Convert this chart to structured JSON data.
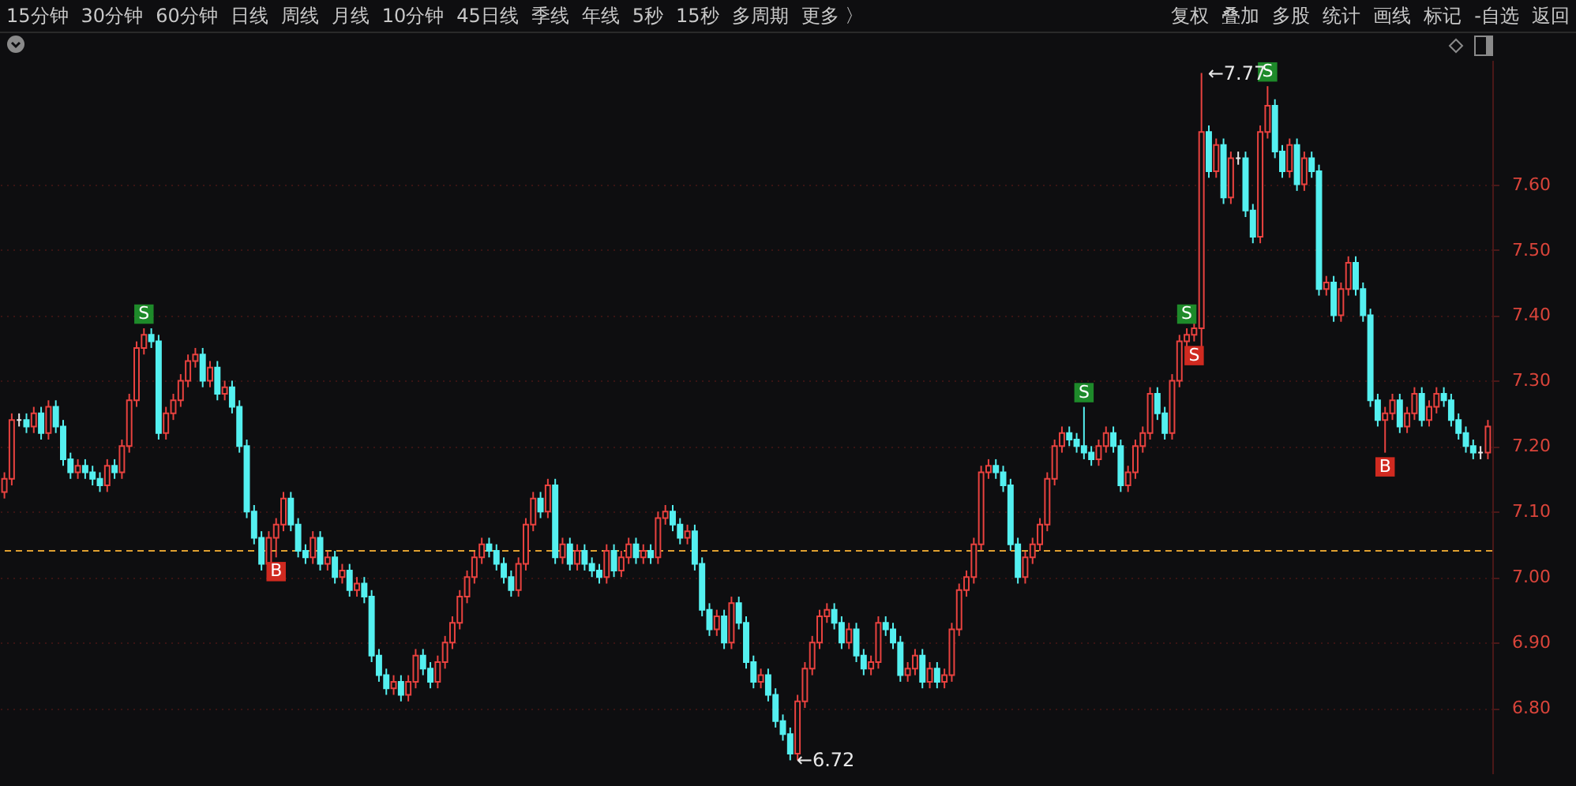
{
  "chart_data": {
    "type": "candlestick",
    "categories": [
      null,
      null,
      null,
      null,
      null,
      null,
      null,
      null,
      null,
      null,
      null,
      null,
      null,
      null,
      null,
      null,
      null,
      null,
      null,
      null,
      null,
      null,
      null,
      null,
      null,
      null,
      null,
      null,
      null,
      null,
      null,
      null,
      null,
      null,
      null,
      null,
      null,
      null,
      null,
      null,
      null,
      null,
      null,
      null,
      null,
      null,
      null,
      null,
      null,
      null,
      null,
      null,
      null,
      null,
      null,
      null,
      null,
      null,
      null,
      null,
      null,
      null,
      null,
      null,
      null,
      null,
      null,
      null,
      null,
      null,
      null,
      null,
      null,
      null,
      null,
      null,
      null,
      null,
      null,
      null,
      null,
      null,
      null,
      null,
      null,
      null,
      null,
      null,
      null,
      null,
      null,
      null,
      null,
      null,
      null,
      null,
      null,
      null,
      null,
      null,
      null,
      null,
      null,
      null,
      null,
      null,
      null,
      null,
      null,
      null,
      null,
      null,
      null,
      null,
      null,
      null,
      null,
      null,
      null,
      null,
      null,
      null,
      null,
      null,
      null,
      null,
      null,
      null,
      null,
      null,
      null,
      null,
      null,
      null,
      null,
      null,
      null,
      null,
      null,
      null,
      null,
      null,
      null,
      null,
      null,
      null,
      null,
      null,
      null,
      null,
      null,
      null,
      null,
      null,
      null,
      null,
      null,
      null,
      null,
      null,
      null,
      null,
      null,
      null,
      null,
      null,
      null,
      null,
      null,
      null,
      null,
      null,
      null,
      null,
      null,
      null,
      null,
      null,
      null,
      null,
      null,
      null,
      null,
      null,
      null,
      null,
      null,
      null,
      null,
      null,
      null,
      null,
      null,
      null,
      null,
      null,
      null,
      null,
      null,
      null,
      null,
      null,
      null
    ],
    "ohlc": [
      [
        7.13,
        7.16,
        7.12,
        7.15
      ],
      [
        7.15,
        7.25,
        7.14,
        7.24
      ],
      [
        7.24,
        7.25,
        7.23,
        7.24
      ],
      [
        7.24,
        7.25,
        7.22,
        7.23
      ],
      [
        7.23,
        7.26,
        7.22,
        7.25
      ],
      [
        7.25,
        7.26,
        7.21,
        7.22
      ],
      [
        7.22,
        7.27,
        7.21,
        7.26
      ],
      [
        7.26,
        7.27,
        7.22,
        7.23
      ],
      [
        7.23,
        7.24,
        7.17,
        7.18
      ],
      [
        7.18,
        7.19,
        7.15,
        7.16
      ],
      [
        7.16,
        7.18,
        7.15,
        7.17
      ],
      [
        7.17,
        7.18,
        7.15,
        7.16
      ],
      [
        7.16,
        7.17,
        7.14,
        7.15
      ],
      [
        7.15,
        7.16,
        7.13,
        7.14
      ],
      [
        7.14,
        7.18,
        7.13,
        7.17
      ],
      [
        7.17,
        7.18,
        7.15,
        7.16
      ],
      [
        7.16,
        7.21,
        7.15,
        7.2
      ],
      [
        7.2,
        7.28,
        7.19,
        7.27
      ],
      [
        7.27,
        7.36,
        7.26,
        7.35
      ],
      [
        7.35,
        7.38,
        7.34,
        7.37
      ],
      [
        7.37,
        7.38,
        7.35,
        7.36
      ],
      [
        7.36,
        7.37,
        7.21,
        7.22
      ],
      [
        7.22,
        7.26,
        7.21,
        7.25
      ],
      [
        7.25,
        7.28,
        7.24,
        7.27
      ],
      [
        7.27,
        7.31,
        7.26,
        7.3
      ],
      [
        7.3,
        7.34,
        7.29,
        7.33
      ],
      [
        7.33,
        7.35,
        7.32,
        7.34
      ],
      [
        7.34,
        7.35,
        7.29,
        7.3
      ],
      [
        7.3,
        7.33,
        7.29,
        7.32
      ],
      [
        7.32,
        7.33,
        7.27,
        7.28
      ],
      [
        7.28,
        7.3,
        7.27,
        7.29
      ],
      [
        7.29,
        7.3,
        7.25,
        7.26
      ],
      [
        7.26,
        7.27,
        7.19,
        7.2
      ],
      [
        7.2,
        7.21,
        7.09,
        7.1
      ],
      [
        7.1,
        7.11,
        7.05,
        7.06
      ],
      [
        7.06,
        7.07,
        7.01,
        7.02
      ],
      [
        7.02,
        7.07,
        7.01,
        7.06
      ],
      [
        7.06,
        7.09,
        7.03,
        7.08
      ],
      [
        7.08,
        7.13,
        7.07,
        7.12
      ],
      [
        7.12,
        7.13,
        7.07,
        7.08
      ],
      [
        7.08,
        7.09,
        7.03,
        7.04
      ],
      [
        7.04,
        7.05,
        7.02,
        7.03
      ],
      [
        7.03,
        7.07,
        7.02,
        7.06
      ],
      [
        7.06,
        7.07,
        7.01,
        7.02
      ],
      [
        7.02,
        7.04,
        7.01,
        7.03
      ],
      [
        7.03,
        7.04,
        6.99,
        7.0
      ],
      [
        7.0,
        7.02,
        6.99,
        7.01
      ],
      [
        7.01,
        7.02,
        6.97,
        6.98
      ],
      [
        6.98,
        7.0,
        6.97,
        6.99
      ],
      [
        6.99,
        7.0,
        6.96,
        6.97
      ],
      [
        6.97,
        6.98,
        6.87,
        6.88
      ],
      [
        6.88,
        6.89,
        6.84,
        6.85
      ],
      [
        6.85,
        6.86,
        6.82,
        6.83
      ],
      [
        6.83,
        6.85,
        6.82,
        6.84
      ],
      [
        6.84,
        6.85,
        6.81,
        6.82
      ],
      [
        6.82,
        6.85,
        6.81,
        6.84
      ],
      [
        6.84,
        6.89,
        6.83,
        6.88
      ],
      [
        6.88,
        6.89,
        6.85,
        6.86
      ],
      [
        6.86,
        6.87,
        6.83,
        6.84
      ],
      [
        6.84,
        6.88,
        6.83,
        6.87
      ],
      [
        6.87,
        6.91,
        6.86,
        6.9
      ],
      [
        6.9,
        6.94,
        6.89,
        6.93
      ],
      [
        6.93,
        6.98,
        6.92,
        6.97
      ],
      [
        6.97,
        7.01,
        6.96,
        7.0
      ],
      [
        7.0,
        7.04,
        6.99,
        7.03
      ],
      [
        7.03,
        7.06,
        7.02,
        7.05
      ],
      [
        7.05,
        7.06,
        7.03,
        7.04
      ],
      [
        7.04,
        7.05,
        7.01,
        7.02
      ],
      [
        7.02,
        7.03,
        6.99,
        7.0
      ],
      [
        7.0,
        7.01,
        6.97,
        6.98
      ],
      [
        6.98,
        7.03,
        6.97,
        7.02
      ],
      [
        7.02,
        7.09,
        7.01,
        7.08
      ],
      [
        7.08,
        7.13,
        7.07,
        7.12
      ],
      [
        7.12,
        7.13,
        7.09,
        7.1
      ],
      [
        7.1,
        7.15,
        7.09,
        7.14
      ],
      [
        7.14,
        7.15,
        7.02,
        7.03
      ],
      [
        7.03,
        7.06,
        7.02,
        7.05
      ],
      [
        7.05,
        7.06,
        7.01,
        7.02
      ],
      [
        7.02,
        7.05,
        7.01,
        7.04
      ],
      [
        7.04,
        7.05,
        7.01,
        7.02
      ],
      [
        7.02,
        7.03,
        7.0,
        7.01
      ],
      [
        7.01,
        7.02,
        6.99,
        7.0
      ],
      [
        7.0,
        7.05,
        6.99,
        7.04
      ],
      [
        7.04,
        7.05,
        7.0,
        7.01
      ],
      [
        7.01,
        7.04,
        7.0,
        7.03
      ],
      [
        7.03,
        7.06,
        7.02,
        7.05
      ],
      [
        7.05,
        7.06,
        7.02,
        7.03
      ],
      [
        7.03,
        7.05,
        7.02,
        7.04
      ],
      [
        7.04,
        7.05,
        7.02,
        7.03
      ],
      [
        7.03,
        7.1,
        7.02,
        7.09
      ],
      [
        7.09,
        7.11,
        7.08,
        7.1
      ],
      [
        7.1,
        7.11,
        7.07,
        7.08
      ],
      [
        7.08,
        7.09,
        7.05,
        7.06
      ],
      [
        7.06,
        7.08,
        7.05,
        7.07
      ],
      [
        7.07,
        7.08,
        7.01,
        7.02
      ],
      [
        7.02,
        7.03,
        6.94,
        6.95
      ],
      [
        6.95,
        6.96,
        6.91,
        6.92
      ],
      [
        6.92,
        6.95,
        6.91,
        6.94
      ],
      [
        6.94,
        6.95,
        6.89,
        6.9
      ],
      [
        6.9,
        6.97,
        6.89,
        6.96
      ],
      [
        6.96,
        6.97,
        6.92,
        6.93
      ],
      [
        6.93,
        6.94,
        6.86,
        6.87
      ],
      [
        6.87,
        6.88,
        6.83,
        6.84
      ],
      [
        6.84,
        6.86,
        6.83,
        6.85
      ],
      [
        6.85,
        6.86,
        6.81,
        6.82
      ],
      [
        6.82,
        6.83,
        6.77,
        6.78
      ],
      [
        6.78,
        6.79,
        6.75,
        6.76
      ],
      [
        6.76,
        6.77,
        6.72,
        6.73
      ],
      [
        6.73,
        6.82,
        6.72,
        6.81
      ],
      [
        6.81,
        6.87,
        6.8,
        6.86
      ],
      [
        6.86,
        6.91,
        6.85,
        6.9
      ],
      [
        6.9,
        6.95,
        6.89,
        6.94
      ],
      [
        6.94,
        6.96,
        6.93,
        6.95
      ],
      [
        6.95,
        6.96,
        6.92,
        6.93
      ],
      [
        6.93,
        6.94,
        6.89,
        6.9
      ],
      [
        6.9,
        6.93,
        6.89,
        6.92
      ],
      [
        6.92,
        6.93,
        6.87,
        6.88
      ],
      [
        6.88,
        6.89,
        6.85,
        6.86
      ],
      [
        6.86,
        6.88,
        6.85,
        6.87
      ],
      [
        6.87,
        6.94,
        6.86,
        6.93
      ],
      [
        6.93,
        6.94,
        6.91,
        6.92
      ],
      [
        6.92,
        6.93,
        6.89,
        6.9
      ],
      [
        6.9,
        6.91,
        6.84,
        6.85
      ],
      [
        6.85,
        6.87,
        6.84,
        6.86
      ],
      [
        6.86,
        6.89,
        6.85,
        6.88
      ],
      [
        6.88,
        6.89,
        6.83,
        6.84
      ],
      [
        6.84,
        6.87,
        6.83,
        6.86
      ],
      [
        6.86,
        6.87,
        6.83,
        6.84
      ],
      [
        6.84,
        6.86,
        6.83,
        6.85
      ],
      [
        6.85,
        6.93,
        6.84,
        6.92
      ],
      [
        6.92,
        6.99,
        6.91,
        6.98
      ],
      [
        6.98,
        7.01,
        6.97,
        7.0
      ],
      [
        7.0,
        7.06,
        6.99,
        7.05
      ],
      [
        7.05,
        7.17,
        7.04,
        7.16
      ],
      [
        7.16,
        7.18,
        7.15,
        7.17
      ],
      [
        7.17,
        7.18,
        7.15,
        7.16
      ],
      [
        7.16,
        7.17,
        7.13,
        7.14
      ],
      [
        7.14,
        7.15,
        7.04,
        7.05
      ],
      [
        7.05,
        7.06,
        6.99,
        7.0
      ],
      [
        7.0,
        7.04,
        6.99,
        7.03
      ],
      [
        7.03,
        7.06,
        7.02,
        7.05
      ],
      [
        7.05,
        7.09,
        7.04,
        7.08
      ],
      [
        7.08,
        7.16,
        7.07,
        7.15
      ],
      [
        7.15,
        7.21,
        7.14,
        7.2
      ],
      [
        7.2,
        7.23,
        7.19,
        7.22
      ],
      [
        7.22,
        7.23,
        7.2,
        7.21
      ],
      [
        7.21,
        7.22,
        7.19,
        7.2
      ],
      [
        7.2,
        7.26,
        7.18,
        7.19
      ],
      [
        7.19,
        7.2,
        7.17,
        7.18
      ],
      [
        7.18,
        7.21,
        7.17,
        7.2
      ],
      [
        7.2,
        7.23,
        7.19,
        7.22
      ],
      [
        7.22,
        7.23,
        7.19,
        7.2
      ],
      [
        7.2,
        7.21,
        7.13,
        7.14
      ],
      [
        7.14,
        7.17,
        7.13,
        7.16
      ],
      [
        7.16,
        7.21,
        7.15,
        7.2
      ],
      [
        7.2,
        7.23,
        7.19,
        7.22
      ],
      [
        7.22,
        7.29,
        7.21,
        7.28
      ],
      [
        7.28,
        7.29,
        7.24,
        7.25
      ],
      [
        7.25,
        7.26,
        7.21,
        7.22
      ],
      [
        7.22,
        7.31,
        7.21,
        7.3
      ],
      [
        7.3,
        7.37,
        7.29,
        7.36
      ],
      [
        7.36,
        7.38,
        7.35,
        7.37
      ],
      [
        7.37,
        7.39,
        7.36,
        7.38
      ],
      [
        7.38,
        7.77,
        7.33,
        7.68
      ],
      [
        7.68,
        7.69,
        7.61,
        7.62
      ],
      [
        7.62,
        7.67,
        7.61,
        7.66
      ],
      [
        7.66,
        7.67,
        7.57,
        7.58
      ],
      [
        7.58,
        7.65,
        7.57,
        7.64
      ],
      [
        7.64,
        7.65,
        7.63,
        7.64
      ],
      [
        7.64,
        7.65,
        7.55,
        7.56
      ],
      [
        7.56,
        7.57,
        7.51,
        7.52
      ],
      [
        7.52,
        7.69,
        7.51,
        7.68
      ],
      [
        7.68,
        7.75,
        7.67,
        7.72
      ],
      [
        7.72,
        7.73,
        7.64,
        7.65
      ],
      [
        7.65,
        7.66,
        7.61,
        7.62
      ],
      [
        7.62,
        7.67,
        7.61,
        7.66
      ],
      [
        7.66,
        7.67,
        7.59,
        7.6
      ],
      [
        7.6,
        7.65,
        7.59,
        7.64
      ],
      [
        7.64,
        7.65,
        7.61,
        7.62
      ],
      [
        7.62,
        7.63,
        7.43,
        7.44
      ],
      [
        7.44,
        7.46,
        7.43,
        7.45
      ],
      [
        7.45,
        7.46,
        7.39,
        7.4
      ],
      [
        7.4,
        7.45,
        7.39,
        7.44
      ],
      [
        7.44,
        7.49,
        7.43,
        7.48
      ],
      [
        7.48,
        7.49,
        7.43,
        7.44
      ],
      [
        7.44,
        7.45,
        7.39,
        7.4
      ],
      [
        7.4,
        7.41,
        7.26,
        7.27
      ],
      [
        7.27,
        7.28,
        7.23,
        7.24
      ],
      [
        7.24,
        7.26,
        7.19,
        7.25
      ],
      [
        7.25,
        7.28,
        7.24,
        7.27
      ],
      [
        7.27,
        7.28,
        7.22,
        7.23
      ],
      [
        7.23,
        7.26,
        7.22,
        7.25
      ],
      [
        7.25,
        7.29,
        7.24,
        7.28
      ],
      [
        7.28,
        7.29,
        7.23,
        7.24
      ],
      [
        7.24,
        7.27,
        7.23,
        7.26
      ],
      [
        7.26,
        7.29,
        7.25,
        7.28
      ],
      [
        7.28,
        7.29,
        7.26,
        7.27
      ],
      [
        7.27,
        7.28,
        7.23,
        7.24
      ],
      [
        7.24,
        7.25,
        7.21,
        7.22
      ],
      [
        7.22,
        7.23,
        7.19,
        7.2
      ],
      [
        7.2,
        7.21,
        7.18,
        7.19
      ],
      [
        7.19,
        7.2,
        7.18,
        7.19
      ],
      [
        7.19,
        7.24,
        7.18,
        7.23
      ]
    ],
    "ylim": [
      6.7,
      7.79
    ],
    "yticks": [
      {
        "value": 6.8,
        "label": "6.80"
      },
      {
        "value": 6.9,
        "label": "6.90"
      },
      {
        "value": 7.0,
        "label": "7.00"
      },
      {
        "value": 7.1,
        "label": "7.10"
      },
      {
        "value": 7.2,
        "label": "7.20"
      },
      {
        "value": 7.3,
        "label": "7.30"
      },
      {
        "value": 7.4,
        "label": "7.40"
      },
      {
        "value": 7.5,
        "label": "7.50"
      },
      {
        "value": 7.6,
        "label": "7.60"
      }
    ],
    "grid": "y",
    "ref_lines": [
      {
        "axis": "y",
        "value": 7.04,
        "color": "#e0a030",
        "line_style": "dashed"
      }
    ],
    "annotations": [
      "15分钟",
      "30分钟",
      "60分钟",
      "日线",
      "周线",
      "月线",
      "10分钟",
      "45日线",
      "季线",
      "年线",
      "5秒",
      "15秒",
      "多周期",
      "更多 〉",
      "复权",
      "叠加",
      "多股",
      "统计",
      "画线",
      "标记",
      "-自选",
      "返回",
      "←6.72",
      "←7.77",
      {
        "text": "S",
        "y": 7.38
      },
      {
        "text": "B",
        "y": 7.03
      },
      {
        "text": "S",
        "y": 7.26
      },
      {
        "text": "S",
        "y": 7.38
      },
      {
        "text": "S",
        "y": 7.36
      },
      {
        "text": "S",
        "y": 7.75
      },
      {
        "text": "B",
        "y": 7.19
      }
    ]
  }
}
